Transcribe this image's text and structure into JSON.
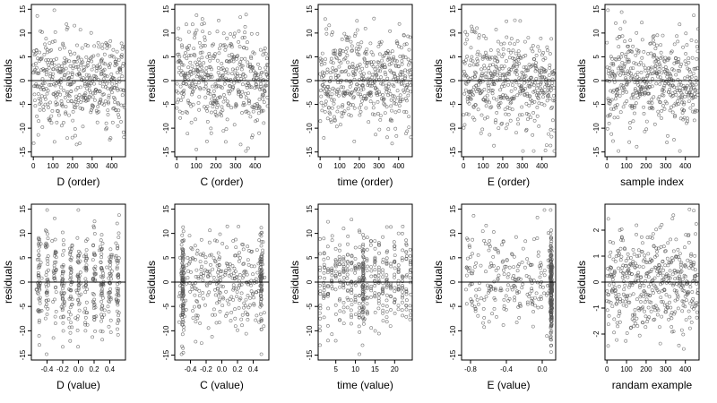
{
  "chart_data": [
    {
      "type": "scatter",
      "xlabel": "D (order)",
      "ylabel": "residuals",
      "xlim": [
        -10,
        470
      ],
      "ylim": [
        -16,
        16
      ],
      "xticks": [
        0,
        100,
        200,
        300,
        400
      ],
      "xtick_labels": [
        "0",
        "100",
        "200",
        "300",
        "400"
      ],
      "yticks": [
        -15,
        -10,
        -5,
        0,
        5,
        10,
        15
      ],
      "ytick_labels": [
        "-15",
        "-10",
        "-5",
        "0",
        "5",
        "10",
        "15"
      ],
      "reference_line_y": 0,
      "point_count": 470,
      "grid": false,
      "legend": false
    },
    {
      "type": "scatter",
      "xlabel": "C (order)",
      "ylabel": "residuals",
      "xlim": [
        -10,
        470
      ],
      "ylim": [
        -16,
        16
      ],
      "xticks": [
        0,
        100,
        200,
        300,
        400
      ],
      "xtick_labels": [
        "0",
        "100",
        "200",
        "300",
        "400"
      ],
      "yticks": [
        -15,
        -10,
        -5,
        0,
        5,
        10,
        15
      ],
      "ytick_labels": [
        "-15",
        "-10",
        "-5",
        "0",
        "5",
        "10",
        "15"
      ],
      "reference_line_y": 0,
      "point_count": 470,
      "grid": false,
      "legend": false
    },
    {
      "type": "scatter",
      "xlabel": "time (order)",
      "ylabel": "residuals",
      "xlim": [
        -10,
        470
      ],
      "ylim": [
        -16,
        16
      ],
      "xticks": [
        0,
        100,
        200,
        300,
        400
      ],
      "xtick_labels": [
        "0",
        "100",
        "200",
        "300",
        "400"
      ],
      "yticks": [
        -15,
        -10,
        -5,
        0,
        5,
        10,
        15
      ],
      "ytick_labels": [
        "-15",
        "-10",
        "-5",
        "0",
        "5",
        "10",
        "15"
      ],
      "reference_line_y": 0,
      "point_count": 470,
      "grid": false,
      "legend": false
    },
    {
      "type": "scatter",
      "xlabel": "E (order)",
      "ylabel": "residuals",
      "xlim": [
        -10,
        470
      ],
      "ylim": [
        -16,
        16
      ],
      "xticks": [
        0,
        100,
        200,
        300,
        400
      ],
      "xtick_labels": [
        "0",
        "100",
        "200",
        "300",
        "400"
      ],
      "yticks": [
        -15,
        -10,
        -5,
        0,
        5,
        10,
        15
      ],
      "ytick_labels": [
        "-15",
        "-10",
        "-5",
        "0",
        "5",
        "10",
        "15"
      ],
      "reference_line_y": 0,
      "point_count": 470,
      "grid": false,
      "legend": false
    },
    {
      "type": "scatter",
      "xlabel": "sample index",
      "ylabel": "residuals",
      "xlim": [
        -10,
        470
      ],
      "ylim": [
        -16,
        16
      ],
      "xticks": [
        0,
        100,
        200,
        300,
        400
      ],
      "xtick_labels": [
        "0",
        "100",
        "200",
        "300",
        "400"
      ],
      "yticks": [
        -15,
        -10,
        -5,
        0,
        5,
        10,
        15
      ],
      "ytick_labels": [
        "-15",
        "-10",
        "-5",
        "0",
        "5",
        "10",
        "15"
      ],
      "reference_line_y": 0,
      "point_count": 470,
      "grid": false,
      "legend": false
    },
    {
      "type": "scatter",
      "xlabel": "D (value)",
      "ylabel": "residuals",
      "xlim": [
        -0.6,
        0.6
      ],
      "ylim": [
        -16,
        16
      ],
      "xticks": [
        -0.4,
        -0.2,
        0,
        0.2,
        0.4
      ],
      "xtick_labels": [
        "-0.4",
        "-0.2",
        "0.0",
        "0.2",
        "0.4"
      ],
      "yticks": [
        -15,
        -10,
        -5,
        0,
        5,
        10,
        15
      ],
      "ytick_labels": [
        "-15",
        "-10",
        "-5",
        "0",
        "5",
        "10",
        "15"
      ],
      "reference_line_y": 0,
      "point_count": 470,
      "grid": false,
      "legend": false
    },
    {
      "type": "scatter",
      "xlabel": "C (value)",
      "ylabel": "residuals",
      "xlim": [
        -0.6,
        0.6
      ],
      "ylim": [
        -16,
        16
      ],
      "xticks": [
        -0.4,
        -0.2,
        0,
        0.2,
        0.4
      ],
      "xtick_labels": [
        "-0.4",
        "-0.2",
        "0.0",
        "0.2",
        "0.4"
      ],
      "yticks": [
        -15,
        -10,
        -5,
        0,
        5,
        10,
        15
      ],
      "ytick_labels": [
        "-15",
        "-10",
        "-5",
        "0",
        "5",
        "10",
        "15"
      ],
      "reference_line_y": 0,
      "point_count": 470,
      "grid": false,
      "legend": false
    },
    {
      "type": "scatter",
      "xlabel": "time (value)",
      "ylabel": "residuals",
      "xlim": [
        0.5,
        24.5
      ],
      "ylim": [
        -16,
        16
      ],
      "xticks": [
        5,
        10,
        15,
        20
      ],
      "xtick_labels": [
        "5",
        "10",
        "15",
        "20"
      ],
      "yticks": [
        -15,
        -10,
        -5,
        0,
        5,
        10,
        15
      ],
      "ytick_labels": [
        "-15",
        "-10",
        "-5",
        "0",
        "5",
        "10",
        "15"
      ],
      "reference_line_y": 0,
      "point_count": 470,
      "grid": false,
      "legend": false
    },
    {
      "type": "scatter",
      "xlabel": "E (value)",
      "ylabel": "residuals",
      "xlim": [
        -0.9,
        0.15
      ],
      "ylim": [
        -16,
        16
      ],
      "xticks": [
        -0.8,
        -0.4,
        0
      ],
      "xtick_labels": [
        "-0.8",
        "-0.4",
        "0.0"
      ],
      "yticks": [
        -15,
        -10,
        -5,
        0,
        5,
        10,
        15
      ],
      "ytick_labels": [
        "-15",
        "-10",
        "-5",
        "0",
        "5",
        "10",
        "15"
      ],
      "reference_line_y": 0,
      "point_count": 470,
      "grid": false,
      "legend": false
    },
    {
      "type": "scatter",
      "xlabel": "randam example",
      "ylabel": "residuals",
      "xlim": [
        -10,
        470
      ],
      "ylim": [
        -3,
        3
      ],
      "xticks": [
        0,
        100,
        200,
        300,
        400
      ],
      "xtick_labels": [
        "0",
        "100",
        "200",
        "300",
        "400"
      ],
      "yticks": [
        -2,
        -1,
        0,
        1,
        2
      ],
      "ytick_labels": [
        "-2",
        "-1",
        "0",
        "1",
        "2"
      ],
      "reference_line_y": 0,
      "point_count": 470,
      "grid": false,
      "legend": false
    }
  ],
  "colors": {
    "points": "#555555",
    "axes": "#000000",
    "reference_line": "#000000",
    "background": "#ffffff"
  }
}
